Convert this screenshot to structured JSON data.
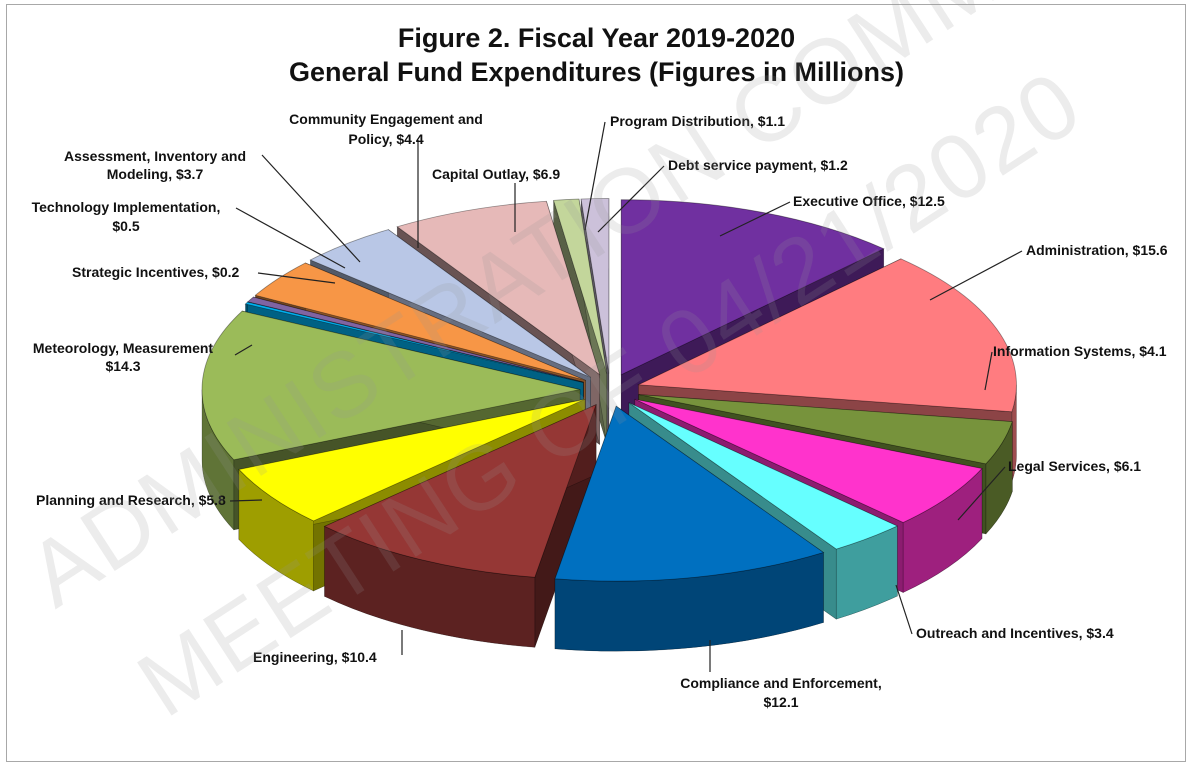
{
  "chart_data": {
    "type": "pie",
    "title": "Figure 2. Fiscal Year 2019-2020",
    "subtitle": "General Fund Expenditures (Figures in Millions)",
    "slices": [
      {
        "label": "Executive Office",
        "value": 12.5,
        "value_text": "$12.5",
        "color": "#7030A0"
      },
      {
        "label": "Administration",
        "value": 15.6,
        "value_text": "$15.6",
        "color": "#FF7C80"
      },
      {
        "label": "Information Systems",
        "value": 4.1,
        "value_text": "$4.1",
        "color": "#77933C"
      },
      {
        "label": "Legal Services",
        "value": 6.1,
        "value_text": "$6.1",
        "color": "#FF33CC"
      },
      {
        "label": "Outreach and Incentives",
        "value": 3.4,
        "value_text": "$3.4",
        "color": "#66FFFF"
      },
      {
        "label": "Compliance and Enforcement",
        "value": 12.1,
        "value_text": "$12.1",
        "color": "#0070C0"
      },
      {
        "label": "Engineering",
        "value": 10.4,
        "value_text": "$10.4",
        "color": "#953735"
      },
      {
        "label": "Planning and Research",
        "value": 5.8,
        "value_text": "$5.8",
        "color": "#FFFF00"
      },
      {
        "label": "Meteorology, Measurement",
        "value": 14.3,
        "value_text": "$14.3",
        "color": "#9BBB59"
      },
      {
        "label": "Strategic Incentives",
        "value": 0.2,
        "value_text": "$0.2",
        "color": "#00B0F0"
      },
      {
        "label": "Technology Implementation",
        "value": 0.5,
        "value_text": "$0.5",
        "color": "#8064A2"
      },
      {
        "label": "Assessment, Inventory and Modeling",
        "value": 3.7,
        "value_text": "$3.7",
        "color": "#F79646"
      },
      {
        "label": "Community Engagement and Policy",
        "value": 4.4,
        "value_text": "$4.4",
        "color": "#B9C7E6"
      },
      {
        "label": "Capital Outlay",
        "value": 6.9,
        "value_text": "$6.9",
        "color": "#E6B9B8"
      },
      {
        "label": "Program Distribution",
        "value": 1.1,
        "value_text": "$1.1",
        "color": "#C3D69B"
      },
      {
        "label": "Debt service payment",
        "value": 1.2,
        "value_text": "$1.2",
        "color": "#CCC1DA"
      }
    ]
  },
  "labels": {
    "executive": "Executive Office,  $12.5",
    "administration": "Administration,  $15.6",
    "information": "Information Systems,  $4.1",
    "legal": "Legal Services,  $6.1",
    "outreach": "Outreach and Incentives,  $3.4",
    "compliance_1": "Compliance and Enforcement,",
    "compliance_2": "$12.1",
    "engineering": "Engineering,  $10.4",
    "planning": "Planning and Research,  $5.8",
    "meteorology_1": "Meteorology, Measurement",
    "meteorology_2": "$14.3",
    "strategic": "Strategic Incentives,  $0.2",
    "technology_1": "Technology Implementation,",
    "technology_2": "$0.5",
    "assessment_1": "Assessment, Inventory and",
    "assessment_2": "Modeling,  $3.7",
    "community_1": "Community Engagement and",
    "community_2": "Policy,  $4.4",
    "capital": "Capital Outlay,  $6.9",
    "program": "Program Distribution,  $1.1",
    "debt": "Debt service payment,  $1.2"
  },
  "watermark": {
    "line1": "ADMINISTRATION COMMITTEE",
    "line2": "MEETING OF 04/21/2020"
  }
}
